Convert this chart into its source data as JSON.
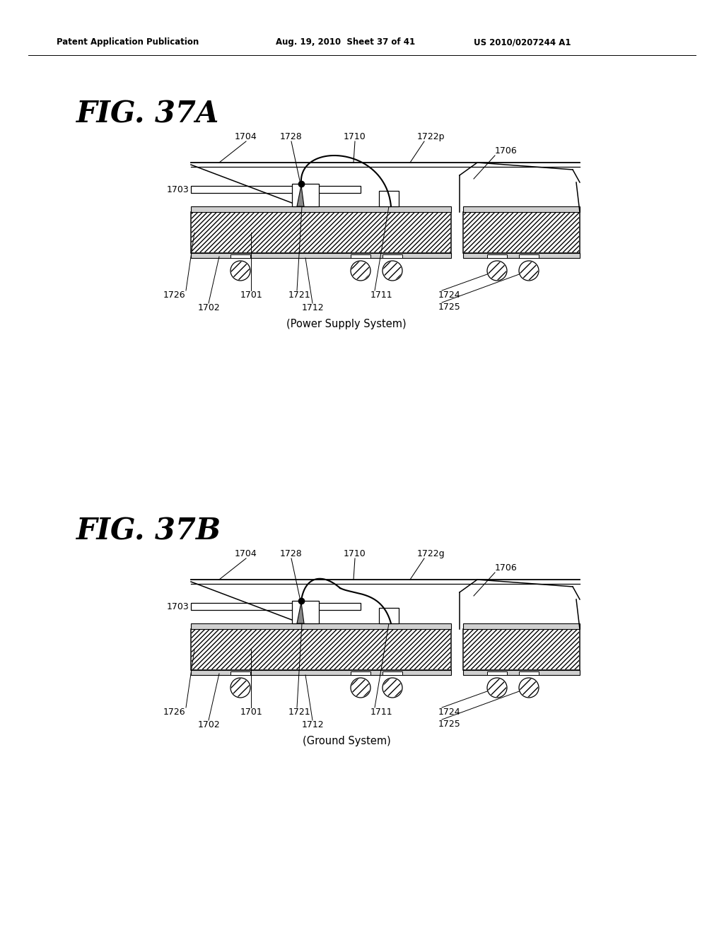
{
  "background_color": "#ffffff",
  "header_left": "Patent Application Publication",
  "header_mid": "Aug. 19, 2010  Sheet 37 of 41",
  "header_right": "US 2010/0207244 A1",
  "fig_a_title": "FIG. 37A",
  "fig_b_title": "FIG. 37B",
  "caption_a": "(Power Supply System)",
  "caption_b": "(Ground System)"
}
